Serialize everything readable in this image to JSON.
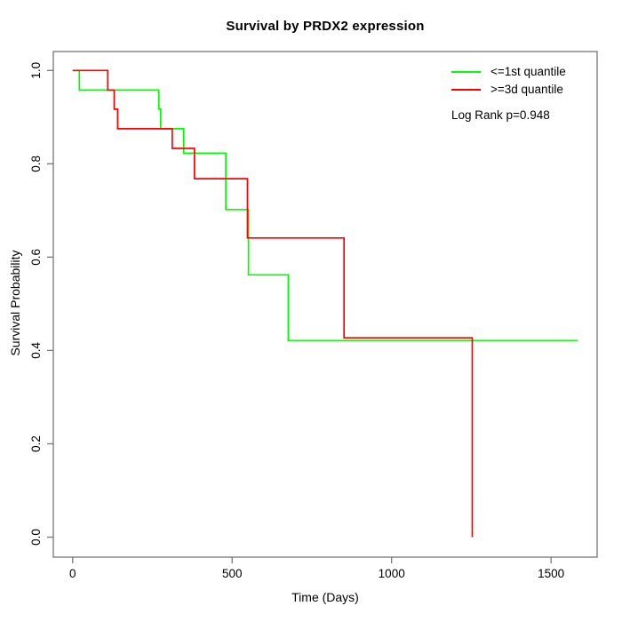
{
  "chart_data": {
    "type": "line",
    "subtype": "kaplan-meier-step",
    "title": "Survival by PRDX2 expression",
    "xlabel": "Time (Days)",
    "ylabel": "Survival Probability",
    "xlim": [
      0,
      1600
    ],
    "ylim": [
      0.0,
      1.0
    ],
    "x_ticks": [
      0,
      500,
      1000,
      1500
    ],
    "y_ticks": [
      0.0,
      0.2,
      0.4,
      0.6,
      0.8,
      1.0
    ],
    "grid": false,
    "legend_position": "top-right-inside",
    "annotation": "Log Rank p=0.948",
    "axis_color": "#777777",
    "series": [
      {
        "name": "<=1st quantile",
        "color": "#00ff00",
        "steps_day_prob": [
          [
            0,
            1.0
          ],
          [
            21,
            0.958
          ],
          [
            270,
            0.917
          ],
          [
            276,
            0.875
          ],
          [
            348,
            0.823
          ],
          [
            480,
            0.702
          ],
          [
            551,
            0.562
          ],
          [
            676,
            0.421
          ]
        ],
        "last_followup_day": 1584
      },
      {
        "name": ">=3d quantile",
        "color": "#ff0000",
        "steps_day_prob": [
          [
            0,
            1.0
          ],
          [
            110,
            0.958
          ],
          [
            130,
            0.917
          ],
          [
            141,
            0.875
          ],
          [
            312,
            0.833
          ],
          [
            382,
            0.768
          ],
          [
            548,
            0.641
          ],
          [
            851,
            0.427
          ],
          [
            1253,
            0.0
          ]
        ],
        "last_followup_day": 1253
      }
    ]
  }
}
